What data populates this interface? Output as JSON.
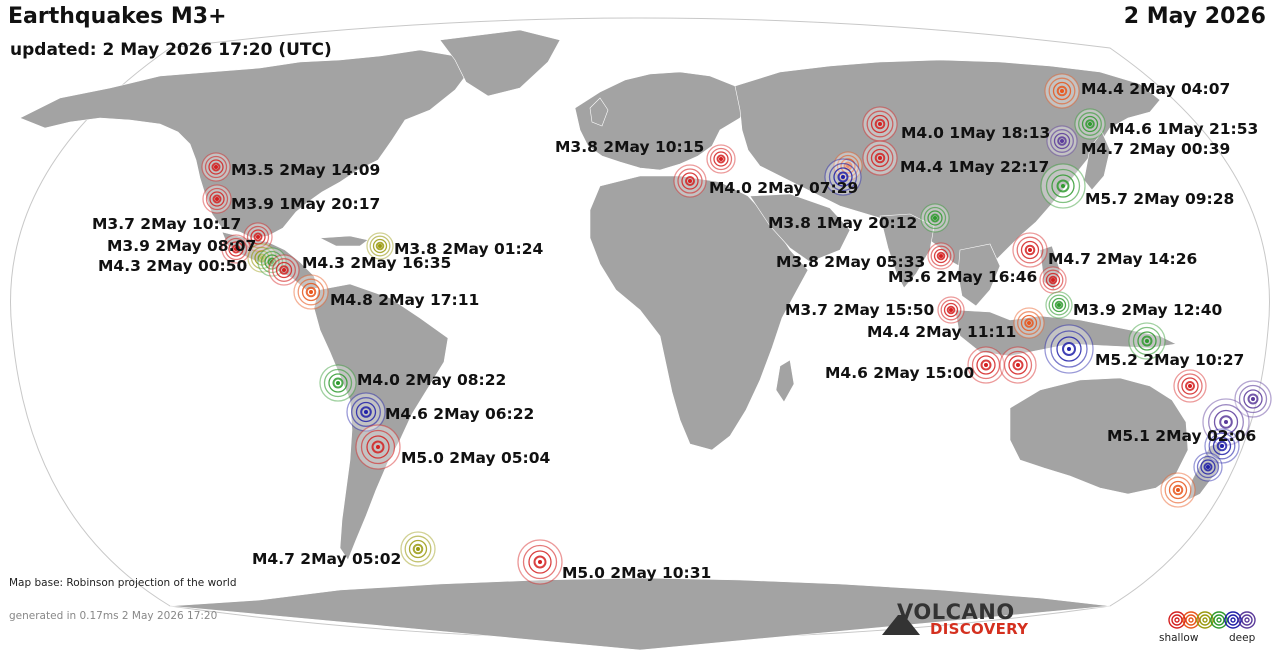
{
  "header": {
    "title": "Earthquakes M3+",
    "date": "2 May 2026",
    "updated": "updated:  2 May 2026 17:20 (UTC)"
  },
  "footer": {
    "map_base": "Map base: Robinson projection of the world",
    "generated": "generated in 0.17ms  2 May 2026 17:20"
  },
  "logo": {
    "top": "VOLCANO",
    "bottom": "DISCOVERY"
  },
  "legend": {
    "shallow": "shallow",
    "deep": "deep",
    "colors": [
      "#d42020",
      "#e8561c",
      "#9a9a0f",
      "#2f9a2f",
      "#2020a8",
      "#5a3a9a"
    ]
  },
  "depth_colors": {
    "shallow": "#d42020",
    "medium_shallow": "#e8561c",
    "medium": "#9a9a0f",
    "intermediate": "#2f9a2f",
    "deep": "#2020a8",
    "very_deep": "#5a3a9a"
  },
  "earthquakes": [
    {
      "label": "M3.5  2May 14:09"
    },
    {
      "label": "M3.9  1May 20:17"
    },
    {
      "label": "M3.7  2May 10:17"
    },
    {
      "label": "M3.9  2May 08:07"
    },
    {
      "label": "M4.3  2May 00:50"
    },
    {
      "label": "M4.3  2May 16:35"
    },
    {
      "label": "M3.8  2May 01:24"
    },
    {
      "label": "M4.8  2May 17:11"
    },
    {
      "label": "M4.0  2May 08:22"
    },
    {
      "label": "M4.6  2May 06:22"
    },
    {
      "label": "M5.0  2May 05:04"
    },
    {
      "label": "M4.7  2May 05:02"
    },
    {
      "label": "M5.0  2May 10:31"
    },
    {
      "label": "M3.8  2May 10:15"
    },
    {
      "label": "M4.0  2May 07:29"
    },
    {
      "label": "M4.0  1May 18:13"
    },
    {
      "label": "M4.4  1May 22:17"
    },
    {
      "label": "M3.8  1May 20:12"
    },
    {
      "label": "M3.8  2May 05:33"
    },
    {
      "label": "M3.6  2May 16:46"
    },
    {
      "label": "M3.7  2May 15:50"
    },
    {
      "label": "M4.4  2May 11:11"
    },
    {
      "label": "M4.6  2May 15:00"
    },
    {
      "label": "M4.7  2May 14:26"
    },
    {
      "label": "M3.9  2May 12:40"
    },
    {
      "label": "M5.2  2May 10:27"
    },
    {
      "label": "M4.4  2May 04:07"
    },
    {
      "label": "M4.6  1May 21:53"
    },
    {
      "label": "M4.7  2May 00:39"
    },
    {
      "label": "M5.7  2May 09:28"
    },
    {
      "label": "M5.1  2May 02:06"
    }
  ]
}
